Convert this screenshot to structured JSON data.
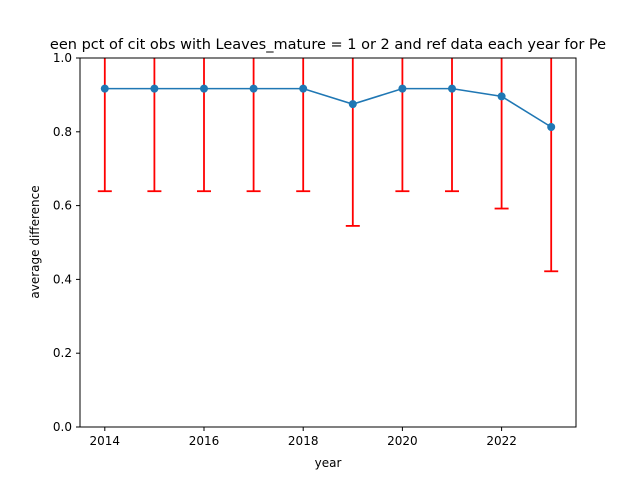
{
  "chart_data": {
    "type": "line",
    "title": "een pct of cit obs with Leaves_mature = 1 or 2 and ref data each year for Pe",
    "xlabel": "year",
    "ylabel": "average difference",
    "xlim": [
      2013.5,
      2023.5
    ],
    "ylim": [
      0,
      1.0
    ],
    "x_ticks": [
      2014,
      2016,
      2018,
      2020,
      2022
    ],
    "y_ticks": [
      0.0,
      0.2,
      0.4,
      0.6,
      0.8,
      1.0
    ],
    "x_tick_labels": [
      "2014",
      "2016",
      "2018",
      "2020",
      "2022"
    ],
    "y_tick_labels": [
      "0.0",
      "0.2",
      "0.4",
      "0.6",
      "0.8",
      "1.0"
    ],
    "grid": false,
    "legend": false,
    "series": [
      {
        "x": [
          2014,
          2015,
          2016,
          2017,
          2018,
          2019,
          2020,
          2021,
          2022,
          2023
        ],
        "y": [
          0.917,
          0.917,
          0.917,
          0.917,
          0.917,
          0.875,
          0.917,
          0.917,
          0.896,
          0.813
        ],
        "error_low": [
          0.639,
          0.639,
          0.639,
          0.639,
          0.639,
          0.545,
          0.639,
          0.639,
          0.592,
          0.422
        ],
        "error_high": [
          1.2,
          1.2,
          1.2,
          1.2,
          1.2,
          1.2,
          1.2,
          1.2,
          1.2,
          1.2
        ],
        "line_color": "#1f77b4",
        "error_color": "#ff0000"
      }
    ]
  }
}
